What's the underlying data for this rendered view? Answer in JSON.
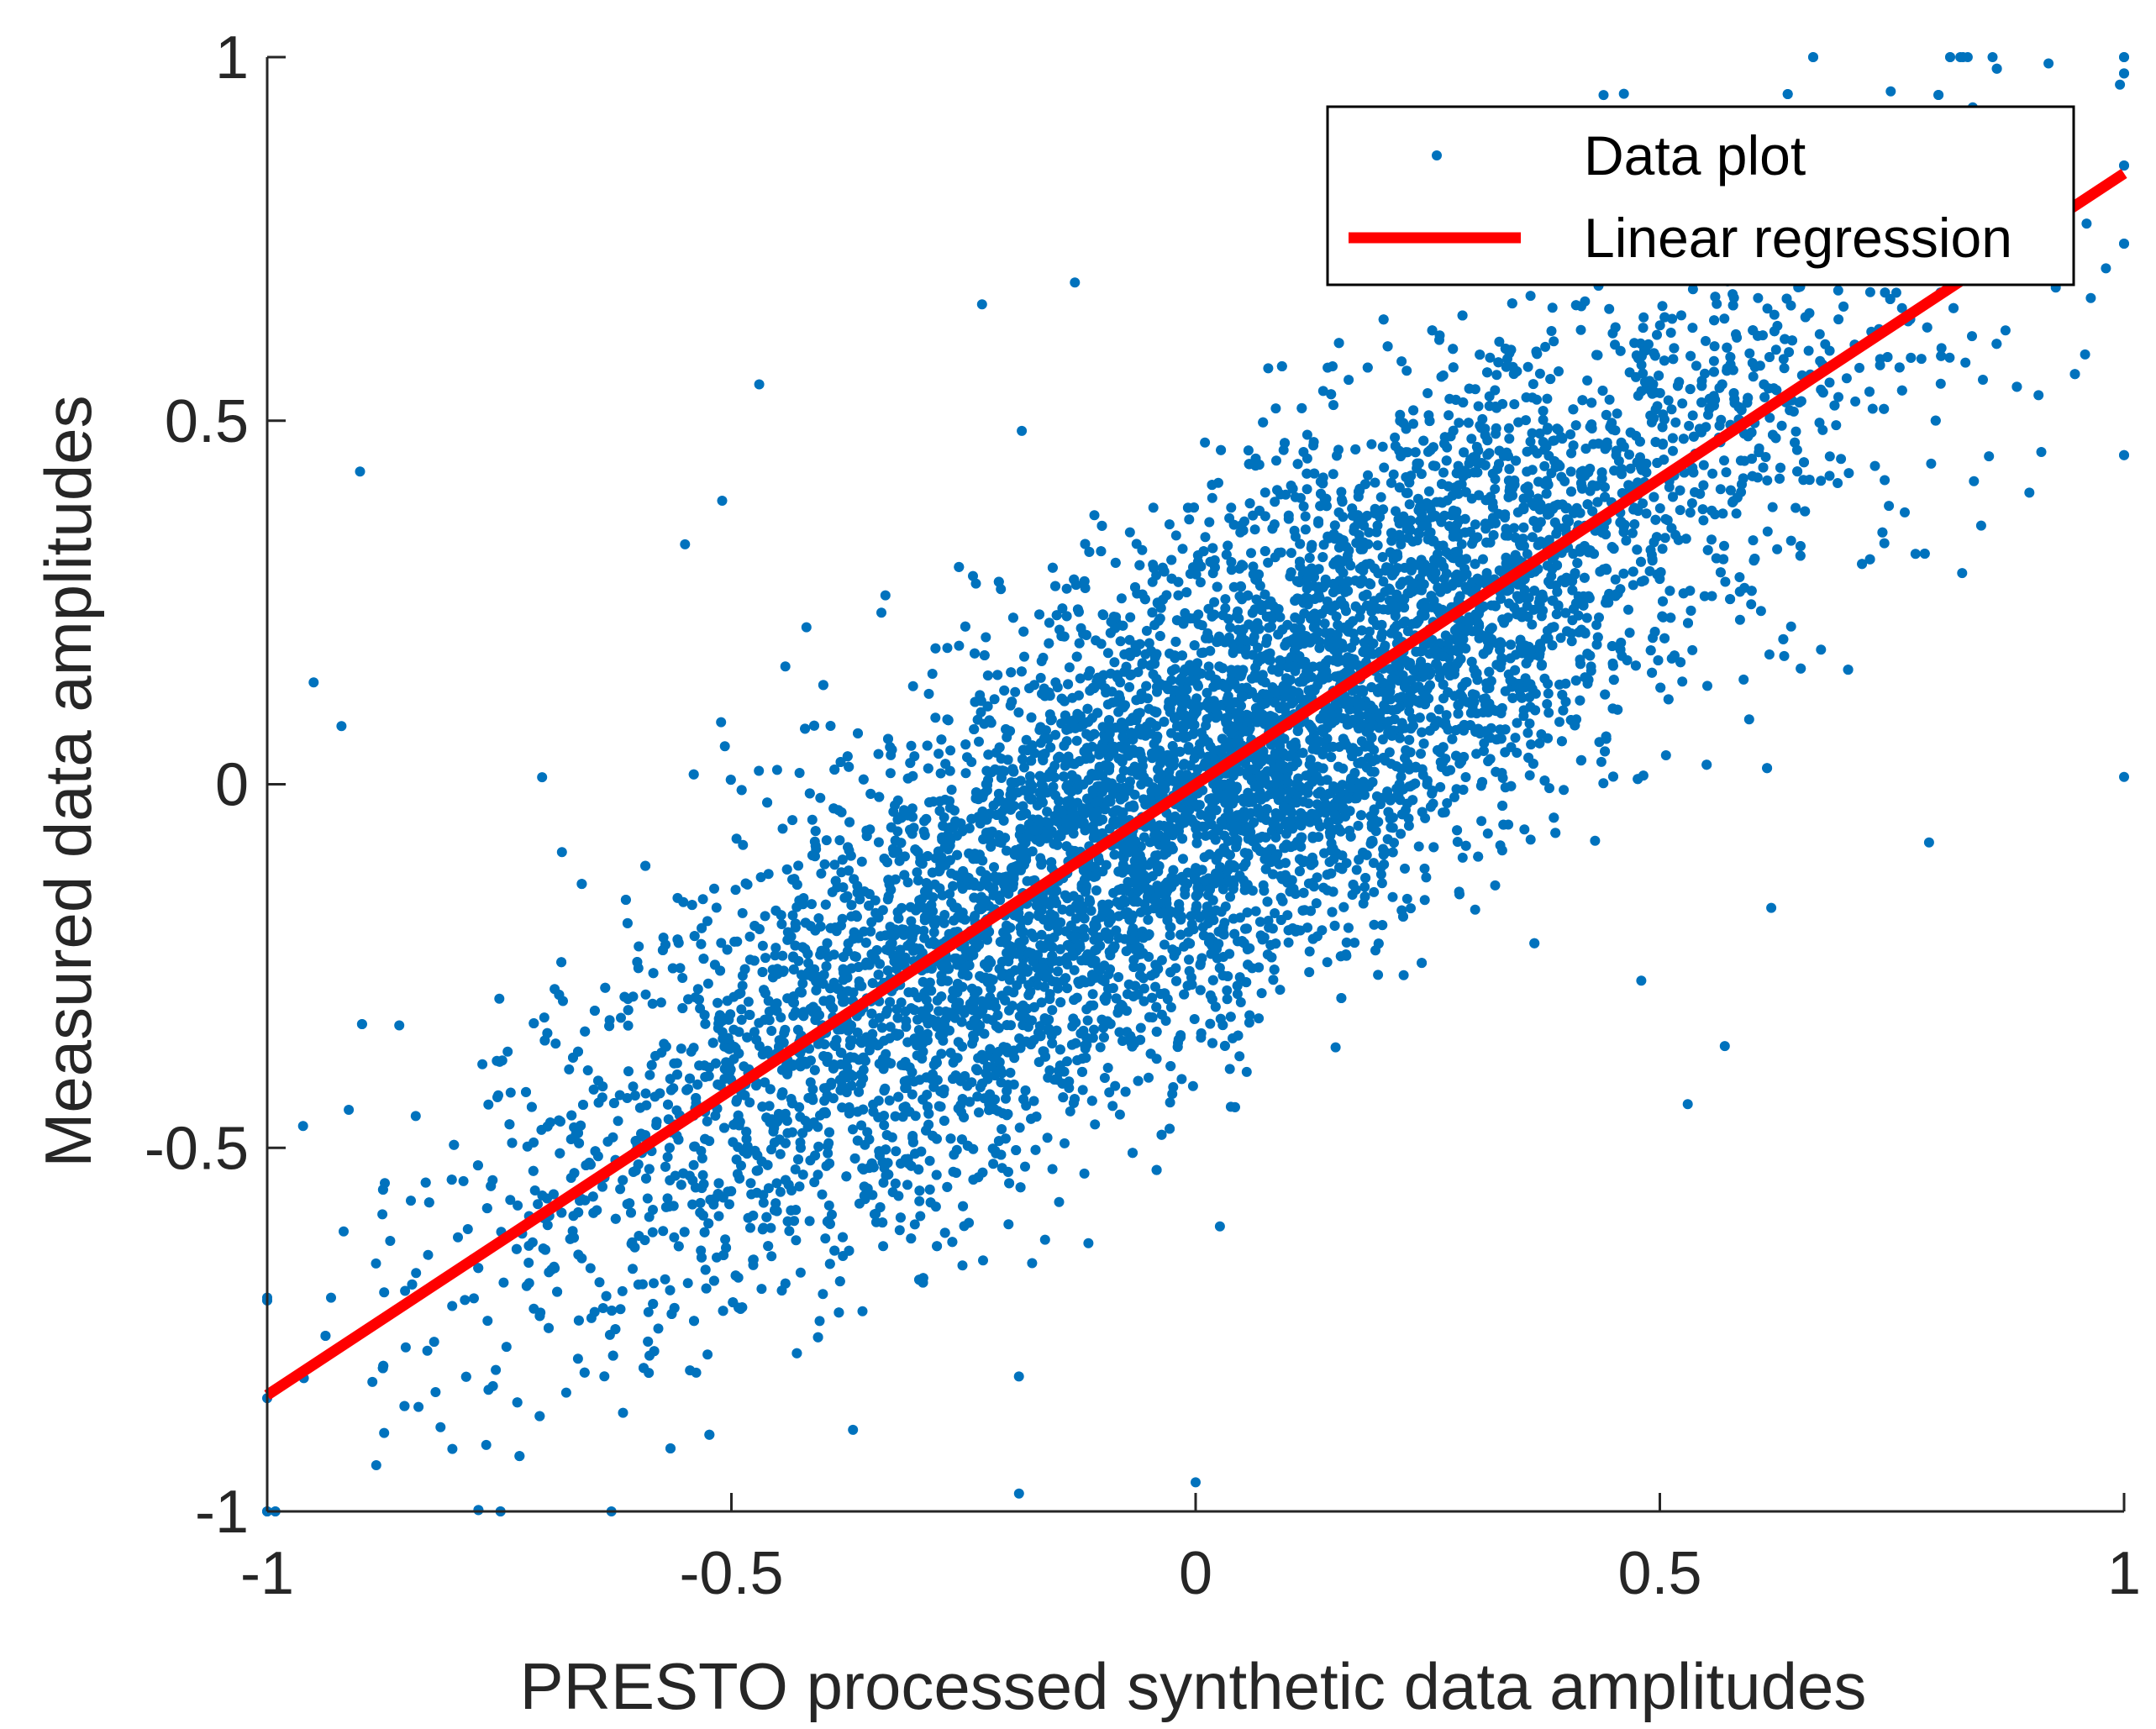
{
  "chart_data": {
    "type": "scatter",
    "title": "",
    "xlabel": "PRESTO processed synthetic data amplitudes",
    "ylabel": "Measured data amplitudes",
    "xlim": [
      -1,
      1
    ],
    "ylim": [
      -1,
      1
    ],
    "grid": false,
    "legend_position": "top-right",
    "x_ticks": [
      "-1",
      "-0.5",
      "0",
      "0.5",
      "1"
    ],
    "y_ticks": [
      "-1",
      "-0.5",
      "0",
      "0.5",
      "1"
    ],
    "series": [
      {
        "name": "Data plot",
        "kind": "points",
        "color": "#0072BD",
        "approx_count": 9000,
        "description_stats": {
          "mean_x": 0.0,
          "mean_y": 0.0,
          "std_x": 0.33,
          "slope": 0.84,
          "residual_std": 0.17
        },
        "clipped_to_range": true,
        "sample_points": [
          [
            -0.9,
            0.43
          ],
          [
            -0.95,
            0.14
          ],
          [
            -0.92,
            0.08
          ],
          [
            -0.47,
            0.55
          ],
          [
            -0.55,
            0.33
          ],
          [
            -0.51,
            0.39
          ],
          [
            -0.13,
            0.69
          ],
          [
            -0.23,
            0.66
          ],
          [
            0.62,
            -0.17
          ],
          [
            0.79,
            -0.08
          ],
          [
            0.48,
            -0.27
          ],
          [
            0.53,
            -0.44
          ],
          [
            0.57,
            -0.36
          ],
          [
            1.0,
            0.01
          ],
          [
            0.0,
            -0.96
          ]
        ]
      },
      {
        "name": "Linear regression",
        "kind": "line",
        "color": "#FF0000",
        "x": [
          -1,
          1
        ],
        "y": [
          -0.84,
          0.84
        ]
      }
    ]
  },
  "legend": {
    "entries": [
      {
        "label": "Data plot",
        "color": "#0072BD"
      },
      {
        "label": "Linear regression",
        "color": "#FF0000"
      }
    ]
  },
  "colors": {
    "axis": "#262626",
    "background": "#FFFFFF",
    "legend_border": "#000000"
  }
}
